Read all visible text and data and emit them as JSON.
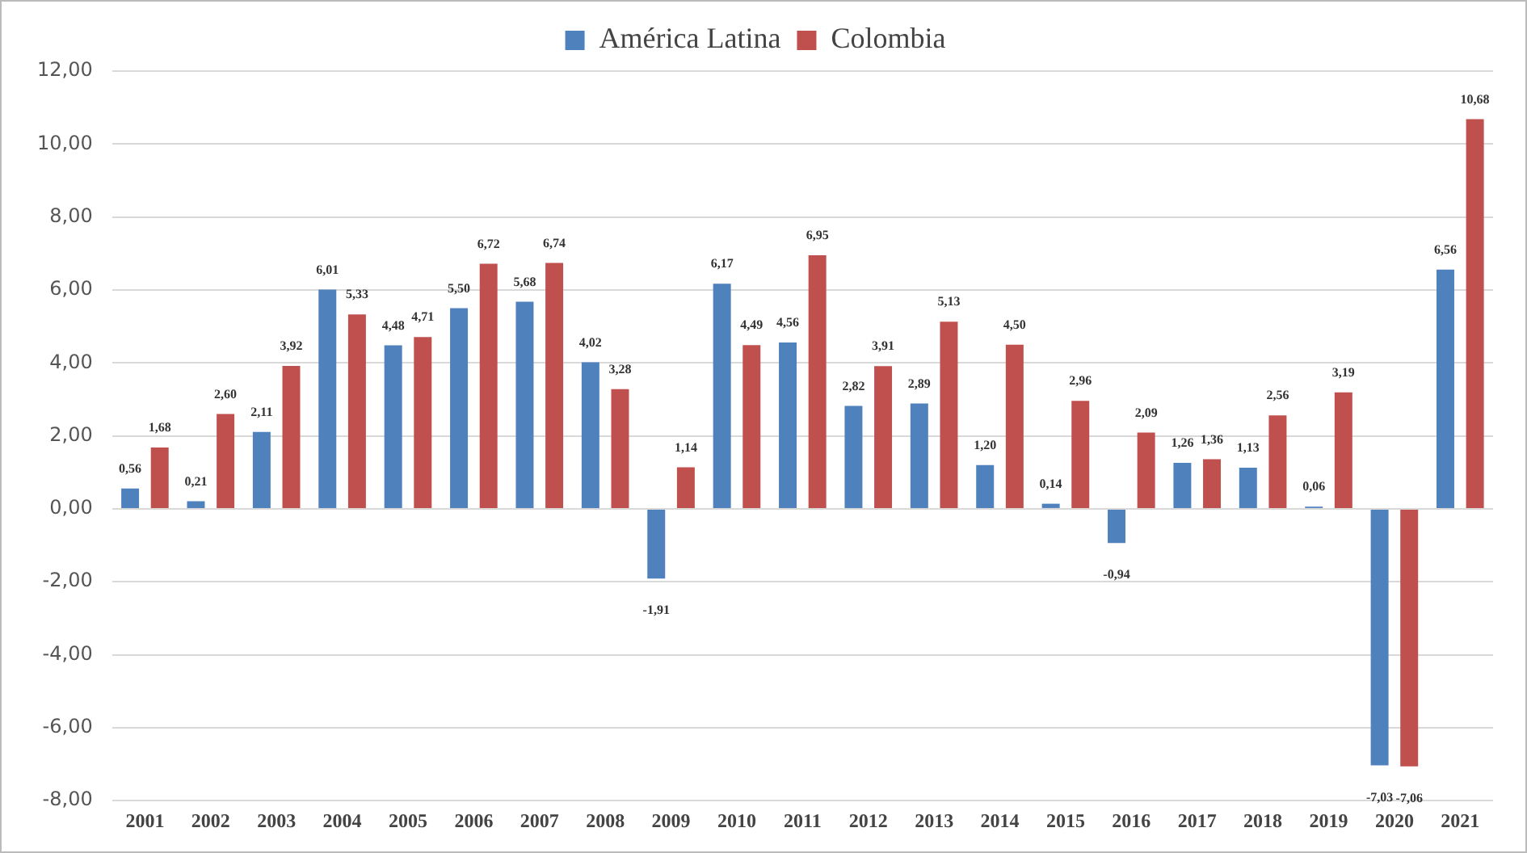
{
  "chart_data": {
    "type": "bar",
    "categories": [
      "2001",
      "2002",
      "2003",
      "2004",
      "2005",
      "2006",
      "2007",
      "2008",
      "2009",
      "2010",
      "2011",
      "2012",
      "2013",
      "2014",
      "2015",
      "2016",
      "2017",
      "2018",
      "2019",
      "2020",
      "2021"
    ],
    "series": [
      {
        "name": "América Latina",
        "color": "#4f81bd",
        "values": [
          0.56,
          0.21,
          2.11,
          6.01,
          4.48,
          5.5,
          5.68,
          4.02,
          -1.91,
          6.17,
          4.56,
          2.82,
          2.89,
          1.2,
          0.14,
          -0.94,
          1.26,
          1.13,
          0.06,
          -7.03,
          6.56
        ],
        "value_labels": [
          "0,56",
          "0,21",
          "2,11",
          "6,01",
          "4,48",
          "5,50",
          "5,68",
          "4,02",
          "-1,91",
          "6,17",
          "4,56",
          "2,82",
          "2,89",
          "1,20",
          "0,14",
          "-0,94",
          "1,26",
          "1,13",
          "0,06",
          "-7,03",
          "6,56"
        ]
      },
      {
        "name": "Colombia",
        "color": "#c0504d",
        "values": [
          1.68,
          2.6,
          3.92,
          5.33,
          4.71,
          6.72,
          6.74,
          3.28,
          1.14,
          4.49,
          6.95,
          3.91,
          5.13,
          4.5,
          2.96,
          2.09,
          1.36,
          2.56,
          3.19,
          -7.06,
          10.68
        ],
        "value_labels": [
          "1,68",
          "2,60",
          "3,92",
          "5,33",
          "4,71",
          "6,72",
          "6,74",
          "3,28",
          "1,14",
          "4,49",
          "6,95",
          "3,91",
          "5,13",
          "4,50",
          "2,96",
          "2,09",
          "1,36",
          "2,56",
          "3,19",
          "-7,06",
          "10,68"
        ]
      }
    ],
    "ylim": [
      -8,
      12
    ],
    "yticks": [
      {
        "value": -8,
        "label": "-8,00"
      },
      {
        "value": -6,
        "label": "-6,00"
      },
      {
        "value": -4,
        "label": "-4,00"
      },
      {
        "value": -2,
        "label": "-2,00"
      },
      {
        "value": 0,
        "label": "0,00"
      },
      {
        "value": 2,
        "label": "2,00"
      },
      {
        "value": 4,
        "label": "4,00"
      },
      {
        "value": 6,
        "label": "6,00"
      },
      {
        "value": 8,
        "label": "8,00"
      },
      {
        "value": 10,
        "label": "10,00"
      },
      {
        "value": 12,
        "label": "12,00"
      }
    ],
    "grid": "y",
    "legend": "top"
  }
}
